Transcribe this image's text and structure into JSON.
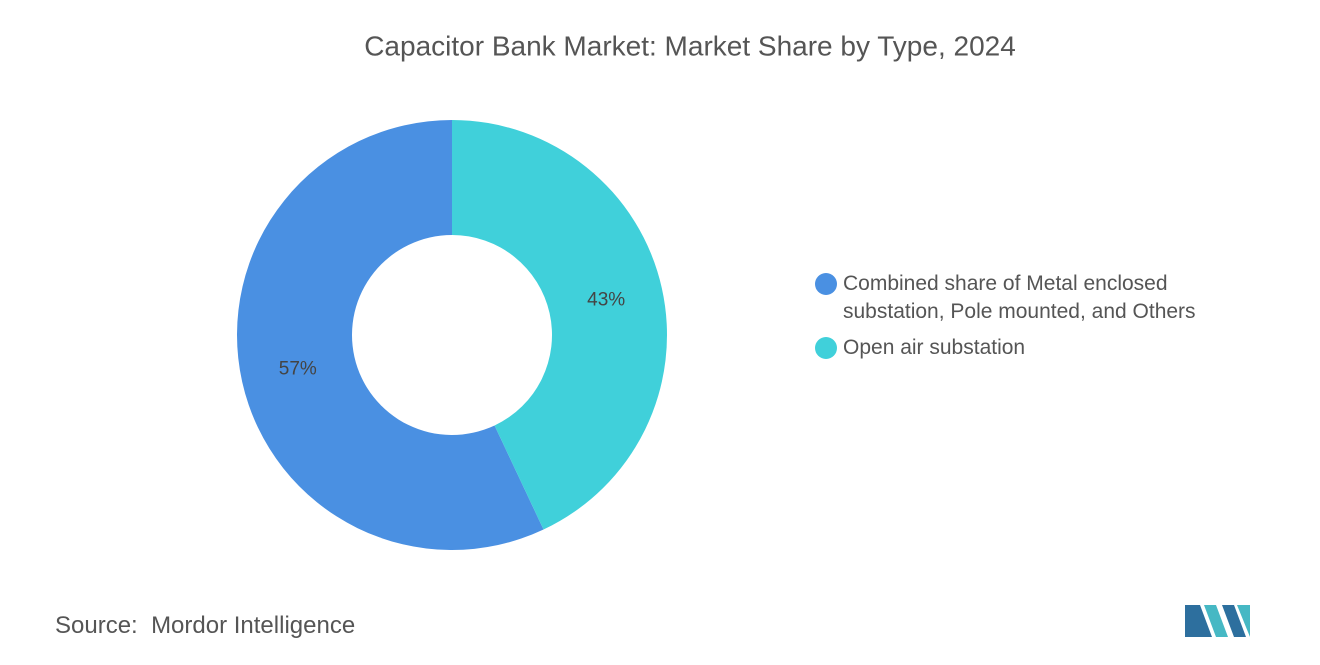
{
  "chart_data": {
    "type": "donut",
    "title": "Capacitor Bank Market: Market Share by Type, 2024",
    "categories": [
      "Combined share of Metal enclosed substation, Pole mounted, and Others",
      "Open air substation"
    ],
    "values": [
      57,
      43
    ],
    "value_labels": [
      "57%",
      "43%"
    ],
    "colors": [
      "#4a90e2",
      "#40d0da"
    ],
    "source_label": "Source:",
    "source": "Mordor Intelligence"
  }
}
